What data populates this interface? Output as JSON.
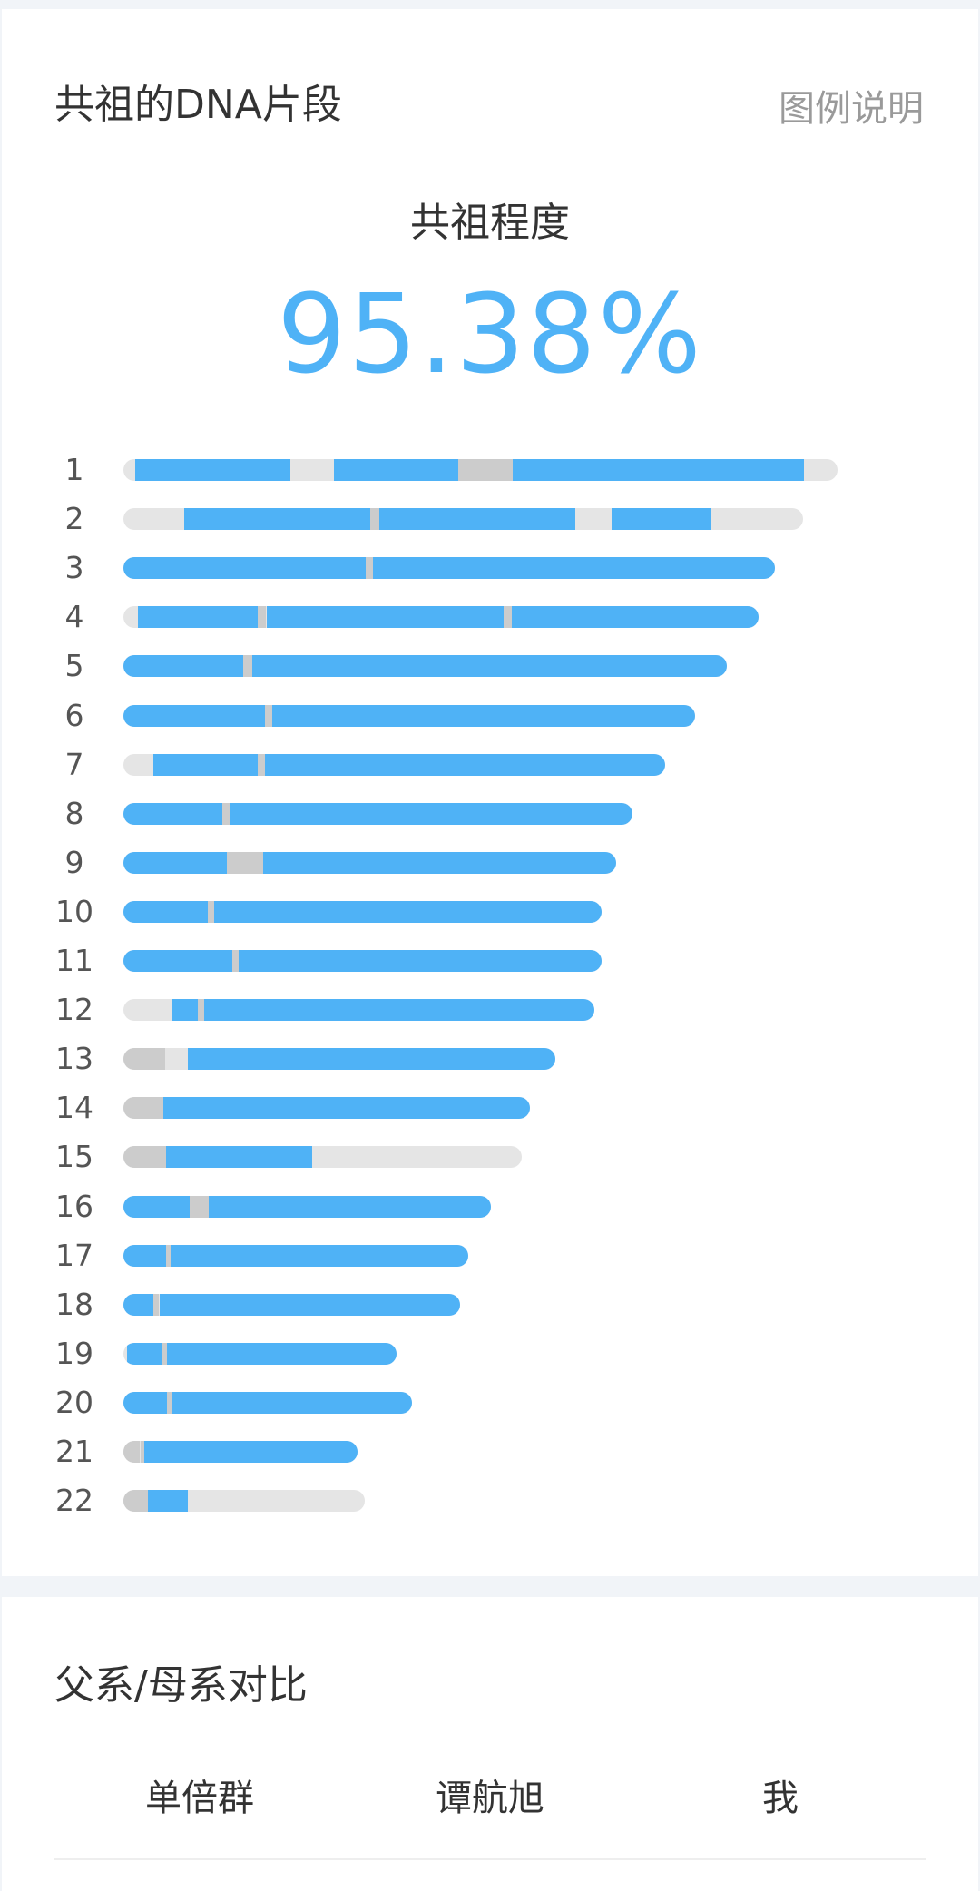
{
  "dna_section": {
    "title": "共祖的DNA片段",
    "legend_link": "图例说明",
    "share_label": "共祖程度",
    "share_value": "95.38%",
    "legend_colors": {
      "match": "#4fb2f6",
      "gap": "#cccccc",
      "none": "#e5e5e5"
    }
  },
  "chromosomes": [
    {
      "num": "1",
      "length": 0.886,
      "segments": [
        [
          "match",
          0.016,
          0.233
        ],
        [
          "match",
          0.295,
          0.469
        ],
        [
          "gap",
          0.469,
          0.545
        ],
        [
          "match",
          0.545,
          0.953
        ]
      ]
    },
    {
      "num": "2",
      "length": 0.843,
      "segments": [
        [
          "match",
          0.089,
          0.363
        ],
        [
          "gap",
          0.363,
          0.377
        ],
        [
          "match",
          0.377,
          0.666
        ],
        [
          "match",
          0.718,
          0.864
        ]
      ]
    },
    {
      "num": "3",
      "length": 0.808,
      "segments": [
        [
          "match",
          0.0,
          0.372
        ],
        [
          "gap",
          0.372,
          0.383
        ],
        [
          "match",
          0.383,
          1.0
        ]
      ]
    },
    {
      "num": "4",
      "length": 0.788,
      "segments": [
        [
          "match",
          0.023,
          0.212
        ],
        [
          "gap",
          0.212,
          0.225
        ],
        [
          "match",
          0.225,
          0.599
        ],
        [
          "gap",
          0.599,
          0.612
        ],
        [
          "match",
          0.612,
          1.0
        ]
      ]
    },
    {
      "num": "5",
      "length": 0.749,
      "segments": [
        [
          "match",
          0.0,
          0.198
        ],
        [
          "gap",
          0.198,
          0.214
        ],
        [
          "match",
          0.214,
          1.0
        ]
      ]
    },
    {
      "num": "6",
      "length": 0.709,
      "segments": [
        [
          "match",
          0.0,
          0.248
        ],
        [
          "gap",
          0.248,
          0.261
        ],
        [
          "match",
          0.261,
          1.0
        ]
      ]
    },
    {
      "num": "7",
      "length": 0.672,
      "segments": [
        [
          "match",
          0.056,
          0.248
        ],
        [
          "gap",
          0.248,
          0.261
        ],
        [
          "match",
          0.261,
          1.0
        ]
      ]
    },
    {
      "num": "8",
      "length": 0.632,
      "segments": [
        [
          "match",
          0.0,
          0.194
        ],
        [
          "gap",
          0.194,
          0.208
        ],
        [
          "match",
          0.208,
          1.0
        ]
      ]
    },
    {
      "num": "9",
      "length": 0.612,
      "segments": [
        [
          "match",
          0.0,
          0.21
        ],
        [
          "gap",
          0.21,
          0.283
        ],
        [
          "match",
          0.283,
          1.0
        ]
      ]
    },
    {
      "num": "10",
      "length": 0.594,
      "segments": [
        [
          "match",
          0.0,
          0.176
        ],
        [
          "gap",
          0.176,
          0.19
        ],
        [
          "match",
          0.19,
          1.0
        ]
      ]
    },
    {
      "num": "11",
      "length": 0.594,
      "segments": [
        [
          "match",
          0.0,
          0.228
        ],
        [
          "gap",
          0.228,
          0.241
        ],
        [
          "match",
          0.241,
          1.0
        ]
      ]
    },
    {
      "num": "12",
      "length": 0.584,
      "segments": [
        [
          "match",
          0.104,
          0.158
        ],
        [
          "gap",
          0.158,
          0.171
        ],
        [
          "match",
          0.171,
          1.0
        ]
      ]
    },
    {
      "num": "13",
      "length": 0.536,
      "segments": [
        [
          "gap",
          0.0,
          0.097
        ],
        [
          "match",
          0.149,
          1.0
        ]
      ]
    },
    {
      "num": "14",
      "length": 0.504,
      "segments": [
        [
          "gap",
          0.0,
          0.098
        ],
        [
          "match",
          0.098,
          1.0
        ]
      ]
    },
    {
      "num": "15",
      "length": 0.494,
      "segments": [
        [
          "gap",
          0.0,
          0.107
        ],
        [
          "match",
          0.107,
          0.473
        ]
      ]
    },
    {
      "num": "16",
      "length": 0.456,
      "segments": [
        [
          "match",
          0.0,
          0.18
        ],
        [
          "gap",
          0.18,
          0.233
        ],
        [
          "match",
          0.233,
          1.0
        ]
      ]
    },
    {
      "num": "17",
      "length": 0.428,
      "segments": [
        [
          "match",
          0.0,
          0.123
        ],
        [
          "gap",
          0.123,
          0.138
        ],
        [
          "match",
          0.138,
          1.0
        ]
      ]
    },
    {
      "num": "18",
      "length": 0.418,
      "segments": [
        [
          "match",
          0.0,
          0.09
        ],
        [
          "gap",
          0.09,
          0.107
        ],
        [
          "match",
          0.107,
          1.0
        ]
      ]
    },
    {
      "num": "19",
      "length": 0.339,
      "segments": [
        [
          "match",
          0.014,
          0.144
        ],
        [
          "gap",
          0.144,
          0.159
        ],
        [
          "match",
          0.159,
          1.0
        ]
      ]
    },
    {
      "num": "20",
      "length": 0.358,
      "segments": [
        [
          "match",
          0.0,
          0.152
        ],
        [
          "gap",
          0.152,
          0.168
        ],
        [
          "match",
          0.168,
          1.0
        ]
      ]
    },
    {
      "num": "21",
      "length": 0.291,
      "segments": [
        [
          "gap",
          0.0,
          0.07
        ],
        [
          "gap",
          0.074,
          0.09
        ],
        [
          "match",
          0.09,
          1.0
        ]
      ]
    },
    {
      "num": "22",
      "length": 0.3,
      "segments": [
        [
          "gap",
          0.0,
          0.101
        ],
        [
          "match",
          0.101,
          0.265
        ]
      ]
    }
  ],
  "compare_section": {
    "title": "父系/母系对比",
    "headers": [
      "单倍群",
      "谭航旭",
      "我"
    ]
  }
}
